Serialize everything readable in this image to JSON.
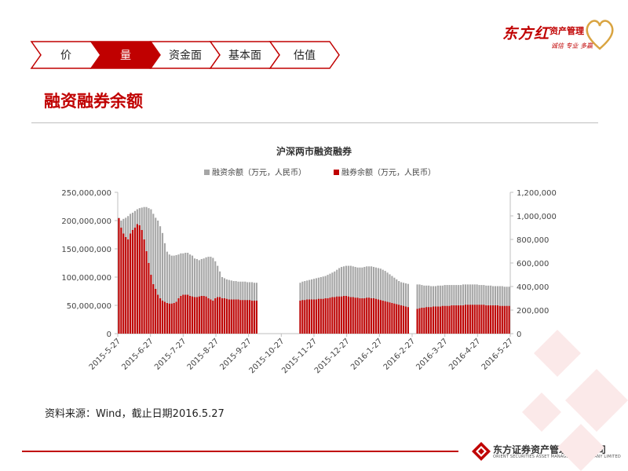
{
  "nav": {
    "tabs": [
      {
        "label": "价",
        "active": false
      },
      {
        "label": "量",
        "active": true
      },
      {
        "label": "资金面",
        "active": false
      },
      {
        "label": "基本面",
        "active": false
      },
      {
        "label": "估值",
        "active": false
      }
    ]
  },
  "branding": {
    "brand_name": "东方红",
    "brand_sub": "资产管理",
    "brand_tag": "诚信 专业 多赢",
    "company_name": "东方证券资产管理有限公司",
    "company_en": "ORIENT SECURITIES ASSET MANAGEMENT COMPANY LIMITED"
  },
  "section_title": "融资融券余额",
  "source_note": "资料来源：Wind，截止日期2016.5.27",
  "colors": {
    "accent": "#c00000",
    "margin_balance": "#a6a6a6",
    "short_balance": "#c00000"
  },
  "chart_data": {
    "type": "bar",
    "title": "沪深两市融资融券",
    "legend_position": "top",
    "x_tick_labels": [
      "2015-5-27",
      "2015-6-27",
      "2015-7-27",
      "2015-8-27",
      "2015-9-27",
      "2015-10-27",
      "2015-11-27",
      "2015-12-27",
      "2016-1-27",
      "2016-2-27",
      "2016-3-27",
      "2016-4-27",
      "2016-5-27"
    ],
    "left_axis": {
      "min": 0,
      "max": 250000000,
      "ticks": [
        "250,000,000",
        "200,000,000",
        "150,000,000",
        "100,000,000",
        "50,000,000",
        "0"
      ]
    },
    "right_axis": {
      "min": 0,
      "max": 1200000,
      "ticks": [
        "1,200,000",
        "1,000,000",
        "800,000",
        "600,000",
        "400,000",
        "200,000",
        "0"
      ]
    },
    "series": [
      {
        "name": "融资余额（万元，人民币）",
        "axis": "left",
        "values": [
          205,
          200,
          203,
          205,
          208,
          212,
          214,
          217,
          220,
          222,
          223,
          224,
          224,
          222,
          220,
          212,
          205,
          200,
          190,
          178,
          160,
          145,
          140,
          138,
          138,
          139,
          140,
          142,
          142,
          143,
          143,
          140,
          138,
          133,
          132,
          130,
          132,
          133,
          135,
          136,
          136,
          134,
          128,
          120,
          110,
          100,
          98,
          96,
          95,
          94,
          93,
          93,
          92,
          92,
          92,
          92,
          91,
          91,
          91,
          90,
          90,
          null,
          null,
          null,
          null,
          null,
          null,
          null,
          null,
          null,
          null,
          null,
          null,
          null,
          null,
          null,
          null,
          null,
          null,
          90,
          92,
          93,
          94,
          95,
          96,
          97,
          98,
          99,
          100,
          101,
          102,
          104,
          106,
          108,
          110,
          113,
          116,
          118,
          119,
          120,
          120,
          120,
          119,
          118,
          117,
          117,
          117,
          118,
          119,
          119,
          119,
          118,
          117,
          116,
          115,
          113,
          111,
          108,
          105,
          102,
          99,
          96,
          93,
          91,
          90,
          89,
          88,
          null,
          null,
          null,
          87,
          87,
          86,
          85,
          85,
          85,
          84,
          84,
          84,
          85,
          85,
          85,
          86,
          86,
          86,
          86,
          86,
          86,
          86,
          86,
          87,
          87,
          87,
          87,
          87,
          87,
          87,
          86,
          86,
          86,
          85,
          85,
          85,
          84,
          84,
          84,
          84,
          84,
          83,
          83,
          83
        ]
      },
      {
        "name": "融券余额（万元，人民币）",
        "axis": "right",
        "values": [
          980,
          900,
          850,
          820,
          800,
          850,
          880,
          900,
          930,
          920,
          880,
          800,
          700,
          600,
          500,
          420,
          380,
          330,
          300,
          280,
          270,
          260,
          255,
          255,
          260,
          270,
          300,
          320,
          330,
          330,
          330,
          320,
          315,
          310,
          310,
          315,
          320,
          320,
          315,
          300,
          290,
          280,
          300,
          310,
          310,
          300,
          300,
          295,
          290,
          290,
          290,
          290,
          290,
          285,
          285,
          285,
          285,
          285,
          280,
          280,
          280,
          null,
          null,
          null,
          null,
          null,
          null,
          null,
          null,
          null,
          null,
          null,
          null,
          null,
          null,
          null,
          null,
          null,
          null,
          280,
          285,
          285,
          290,
          290,
          290,
          290,
          290,
          295,
          295,
          295,
          300,
          300,
          305,
          310,
          310,
          315,
          315,
          315,
          320,
          320,
          315,
          310,
          310,
          305,
          305,
          300,
          300,
          300,
          305,
          305,
          300,
          300,
          295,
          290,
          285,
          280,
          275,
          270,
          265,
          260,
          255,
          250,
          245,
          240,
          235,
          230,
          225,
          null,
          null,
          null,
          210,
          215,
          220,
          220,
          225,
          225,
          225,
          230,
          230,
          230,
          230,
          235,
          235,
          235,
          235,
          240,
          240,
          240,
          240,
          240,
          240,
          245,
          245,
          245,
          245,
          245,
          245,
          245,
          245,
          245,
          240,
          240,
          240,
          240,
          240,
          240,
          235,
          235,
          235,
          235,
          235
        ]
      }
    ]
  }
}
